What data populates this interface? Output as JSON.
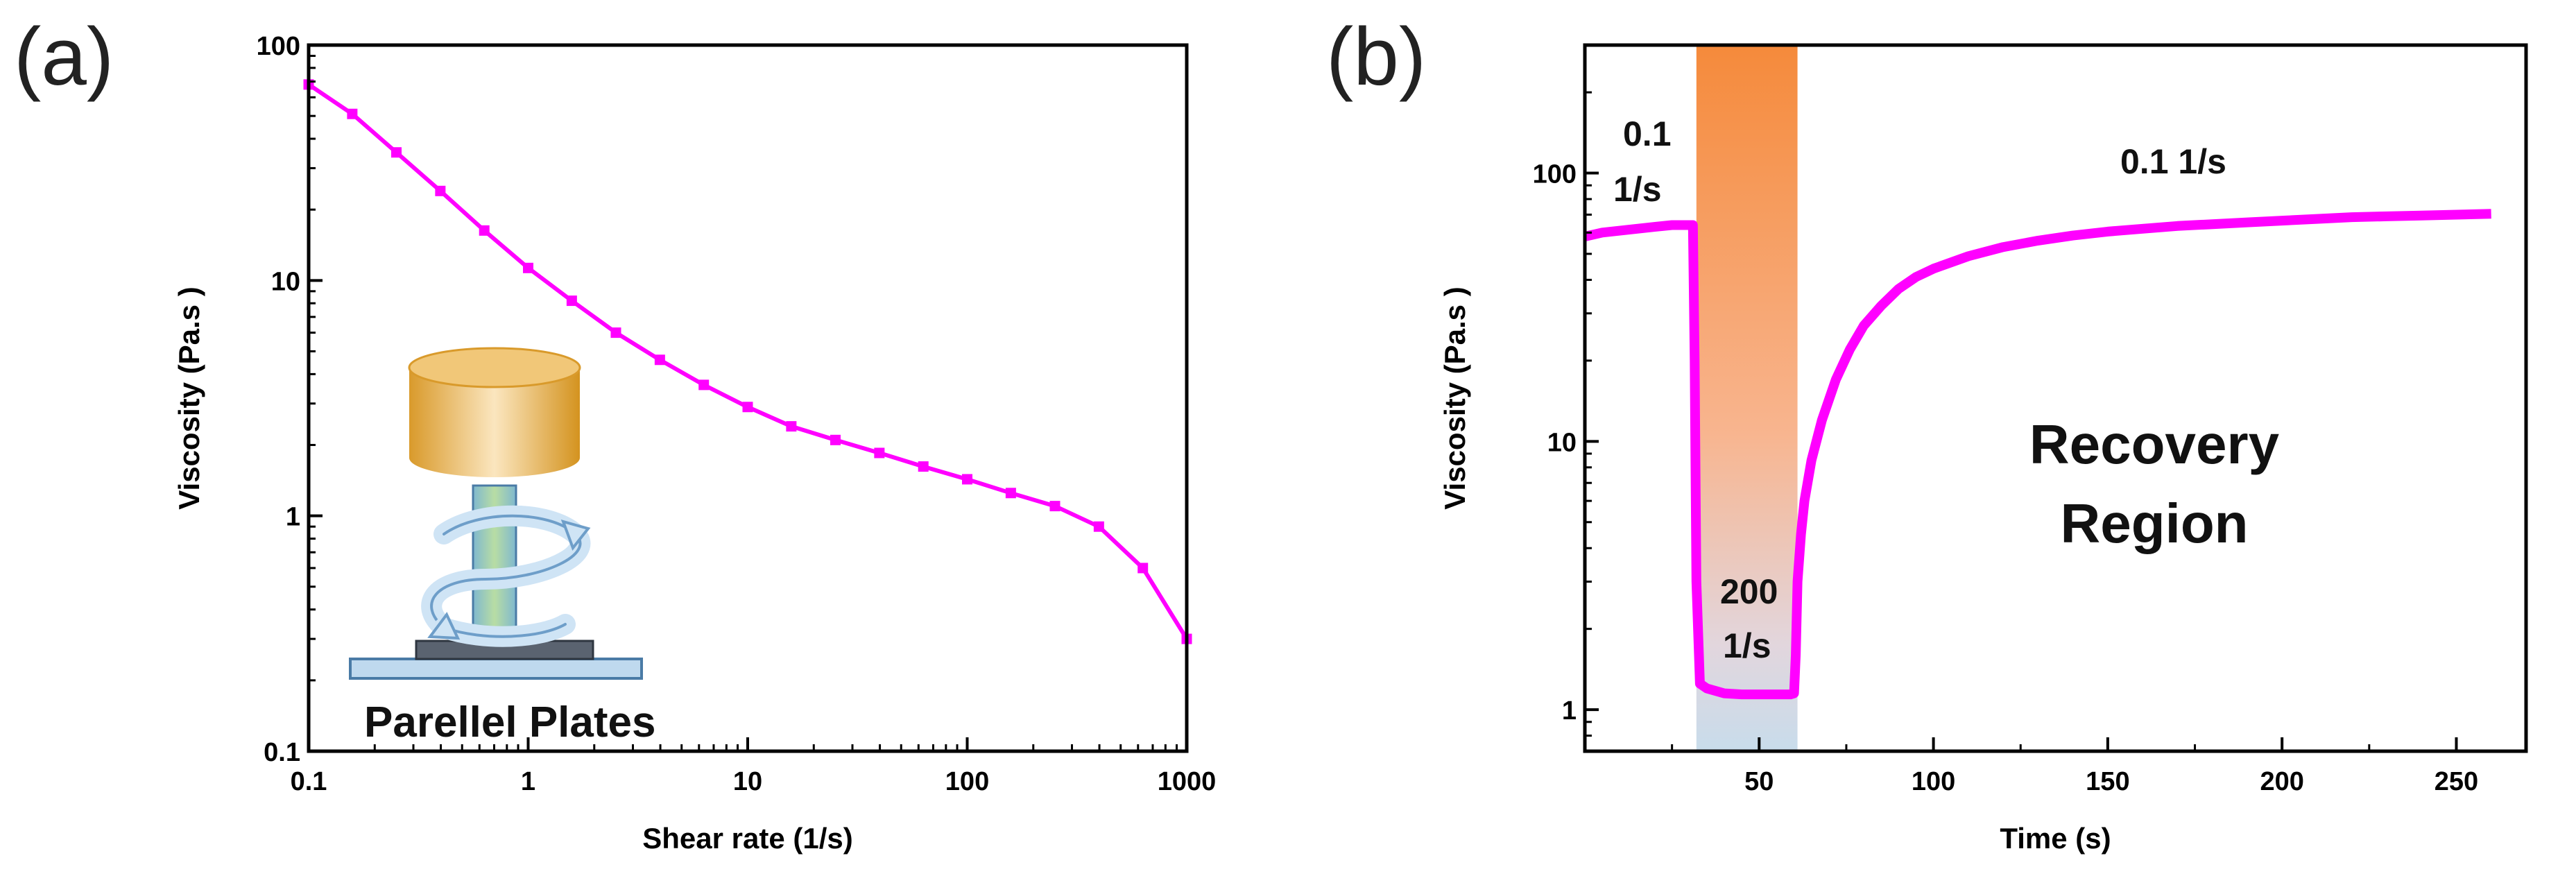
{
  "colors": {
    "series": "#FF00FF",
    "band_top": "#F58A3B",
    "band_bottom": "#C8DCEB",
    "axis": "#000000"
  },
  "panel_a": {
    "label": "(a)",
    "inset": {
      "caption": "Parellel Plates",
      "icon": "parallel-plate-rheometer-icon"
    }
  },
  "panel_b": {
    "label": "(b)",
    "annotation_left_line1": "0.1",
    "annotation_left_line2": "1/s",
    "annotation_right": "0.1 1/s",
    "annotation_band_line1": "200",
    "annotation_band_line2": "1/s",
    "recovery_line1": "Recovery",
    "recovery_line2": "Region"
  },
  "chart_data": [
    {
      "type": "line",
      "panel": "a",
      "title": "",
      "xlabel": "Shear rate (1/s)",
      "ylabel": "Viscosity (Pa.s )",
      "xscale": "log",
      "yscale": "log",
      "xlim": [
        0.1,
        1000
      ],
      "ylim": [
        0.1,
        100
      ],
      "xticks": [
        0.1,
        1,
        10,
        100,
        1000
      ],
      "xtick_labels": [
        "0.1",
        "1",
        "10",
        "100",
        "1000"
      ],
      "yticks": [
        0.1,
        1,
        10,
        100
      ],
      "ytick_labels": [
        "0.1",
        "1",
        "10",
        "100"
      ],
      "series": [
        {
          "name": "Viscosity",
          "marker": "square",
          "x": [
            0.1,
            0.158,
            0.251,
            0.398,
            0.631,
            1,
            1.58,
            2.51,
            3.98,
            6.31,
            10,
            15.8,
            25.1,
            39.8,
            63.1,
            100,
            158,
            251,
            398,
            631,
            1000
          ],
          "y": [
            68,
            51,
            35,
            24,
            16.3,
            11.3,
            8.2,
            6.0,
            4.6,
            3.6,
            2.9,
            2.4,
            2.1,
            1.85,
            1.62,
            1.43,
            1.25,
            1.1,
            0.9,
            0.6,
            0.3
          ]
        }
      ]
    },
    {
      "type": "line",
      "panel": "b",
      "title": "",
      "xlabel": "Time (s)",
      "ylabel": "Viscosity (Pa.s )",
      "xscale": "linear",
      "yscale": "log",
      "xlim": [
        0,
        270
      ],
      "ylim": [
        0.7,
        300
      ],
      "xticks": [
        50,
        100,
        150,
        200,
        250
      ],
      "xtick_labels": [
        "50",
        "100",
        "150",
        "200",
        "250"
      ],
      "yticks": [
        1,
        10,
        100
      ],
      "ytick_labels": [
        "1",
        "10",
        "100"
      ],
      "shaded_region": {
        "x_start": 32,
        "x_end": 61,
        "label": "200 1/s"
      },
      "series": [
        {
          "name": "Viscosity",
          "x": [
            0,
            5,
            10,
            15,
            20,
            25,
            30,
            31,
            31.5,
            32,
            33,
            35,
            40,
            45,
            50,
            55,
            59,
            60,
            60.5,
            61,
            62,
            63,
            65,
            68,
            72,
            76,
            80,
            85,
            90,
            95,
            100,
            110,
            120,
            130,
            140,
            150,
            160,
            170,
            180,
            190,
            200,
            210,
            220,
            230,
            240,
            250,
            260
          ],
          "y": [
            58,
            60,
            61,
            62,
            63,
            64,
            64,
            64,
            20,
            3,
            1.25,
            1.2,
            1.15,
            1.14,
            1.14,
            1.14,
            1.14,
            1.15,
            1.6,
            3,
            4.5,
            6,
            8.5,
            12,
            17,
            22,
            27,
            32,
            37,
            41,
            44,
            49,
            53,
            56,
            58.5,
            60.5,
            62,
            63.5,
            64.5,
            65.5,
            66.5,
            67.5,
            68.5,
            69,
            69.5,
            70,
            70.5
          ]
        }
      ]
    }
  ]
}
